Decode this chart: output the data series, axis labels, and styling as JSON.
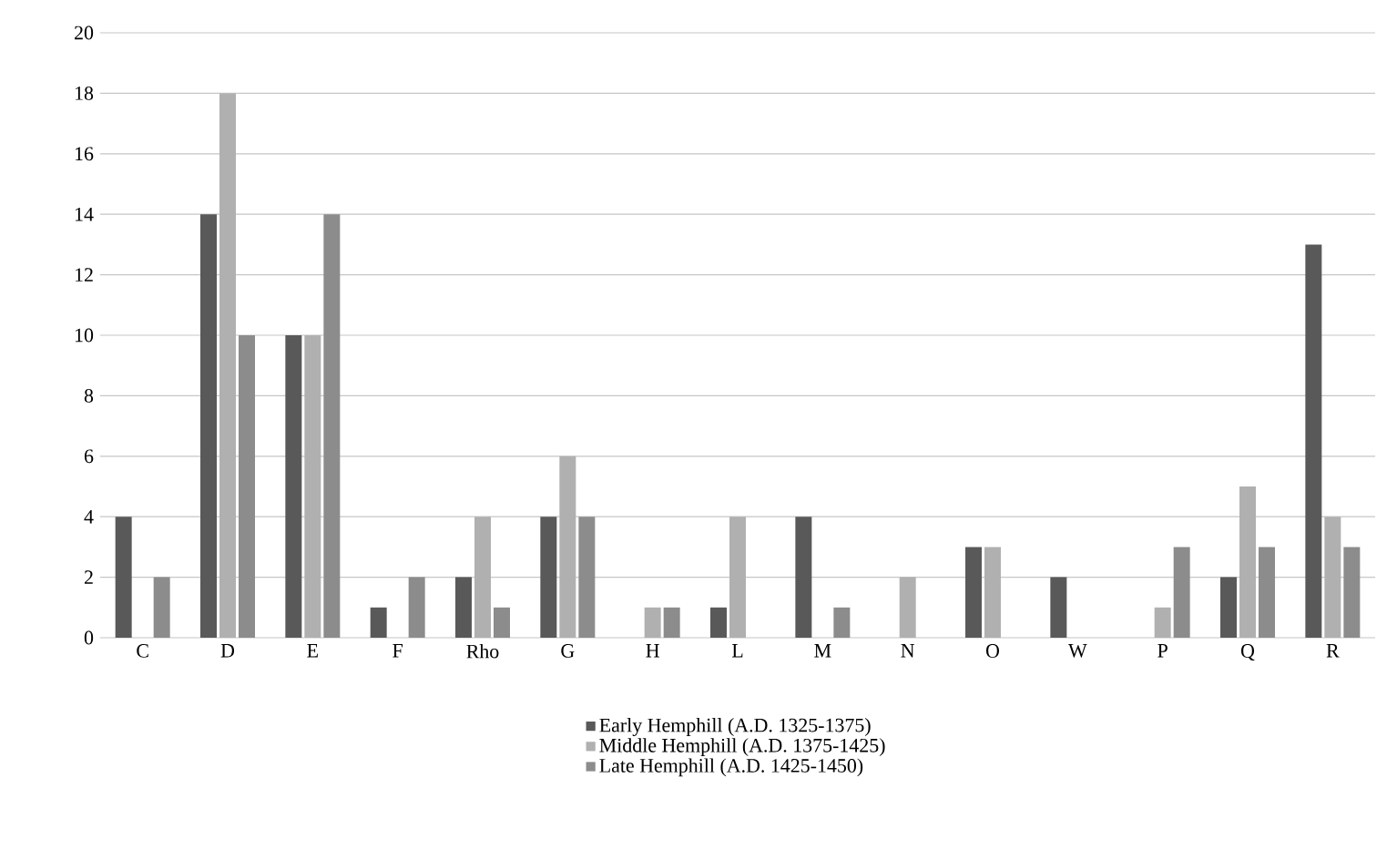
{
  "chart_data": {
    "type": "bar",
    "categories": [
      "C",
      "D",
      "E",
      "F",
      "Rho",
      "G",
      "H",
      "L",
      "M",
      "N",
      "O",
      "W",
      "P",
      "Q",
      "R"
    ],
    "series": [
      {
        "name": "Early Hemphill (A.D. 1325-1375)",
        "color": "#595959",
        "values": [
          4,
          14,
          10,
          1,
          2,
          4,
          0,
          1,
          4,
          0,
          3,
          2,
          0,
          2,
          13
        ]
      },
      {
        "name": "Middle Hemphill (A.D. 1375-1425)",
        "color": "#b0b0b0",
        "values": [
          0,
          18,
          10,
          0,
          4,
          6,
          1,
          4,
          0,
          2,
          3,
          0,
          1,
          5,
          4
        ]
      },
      {
        "name": "Late Hemphill (A.D. 1425-1450)",
        "color": "#8c8c8c",
        "values": [
          2,
          10,
          14,
          2,
          1,
          4,
          1,
          0,
          1,
          0,
          0,
          0,
          3,
          3,
          3
        ]
      }
    ],
    "ylim": [
      0,
      20
    ],
    "yticks": [
      0,
      2,
      4,
      6,
      8,
      10,
      12,
      14,
      16,
      18,
      20
    ],
    "grid": "y",
    "legend": "bottom"
  }
}
